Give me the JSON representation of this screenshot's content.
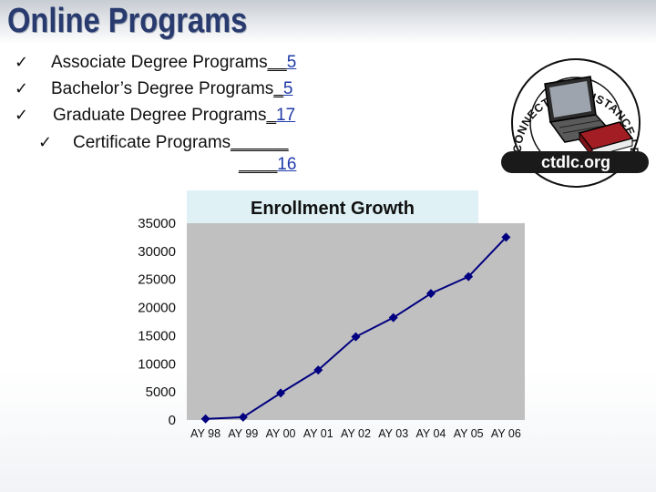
{
  "slide": {
    "title": "Online Programs"
  },
  "bullets": [
    {
      "label": "Associate Degree Programs",
      "blank": "__",
      "count": "5"
    },
    {
      "label": "Bachelor’s Degree Programs",
      "blank": "_",
      "count": "5"
    },
    {
      "label": "Graduate Degree Programs",
      "blank": "_",
      "count": "17"
    },
    {
      "label": "Certificate Programs",
      "blank": "______",
      "blank2": "____",
      "count": "16"
    }
  ],
  "logo": {
    "ring_text": "CONNECTICUT DISTANCE LEARNING CONSORTIUM",
    "url_text": "ctdlc.org"
  },
  "colors": {
    "title": "#283a6e",
    "plot_bg": "#c0c0c0",
    "series": "#000080",
    "title_bg": "#dff1f4"
  },
  "icons": [
    "checkmark-icon",
    "laptop-icon",
    "book-icon"
  ],
  "chart_data": {
    "type": "line",
    "title": "Enrollment Growth",
    "categories": [
      "AY 98",
      "AY 99",
      "AY 00",
      "AY 01",
      "AY 02",
      "AY 03",
      "AY 04",
      "AY 05",
      "AY 06"
    ],
    "series": [
      {
        "values": [
          200,
          500,
          4800,
          8900,
          14800,
          18200,
          22500,
          25500,
          32500
        ]
      }
    ],
    "ylim": [
      0,
      35000
    ],
    "yticks": [
      "0",
      "5000",
      "10000",
      "15000",
      "20000",
      "25000",
      "30000",
      "35000"
    ],
    "xlabel": "",
    "ylabel": "",
    "grid": false,
    "marker": "diamond"
  }
}
